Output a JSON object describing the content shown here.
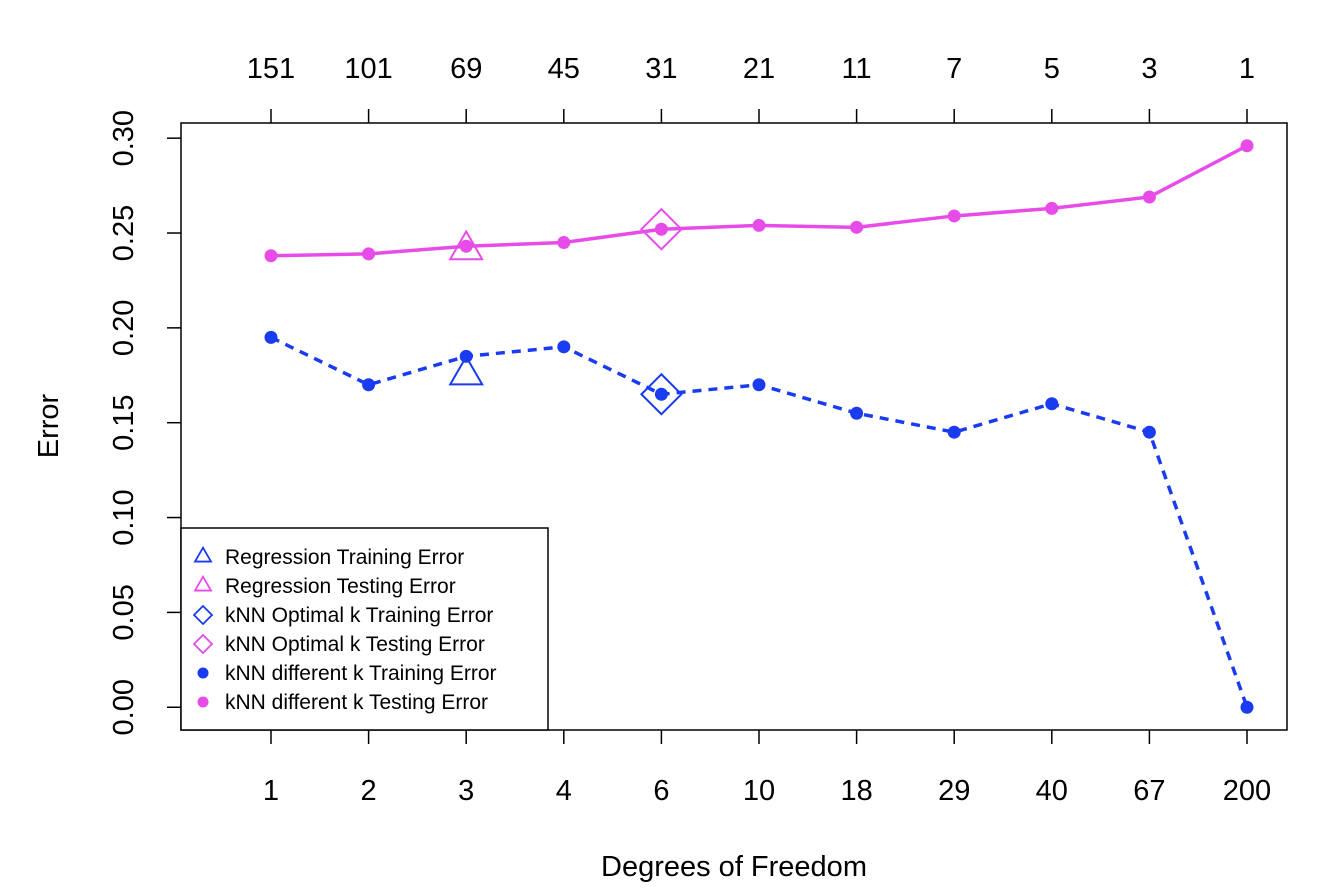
{
  "chart_data": {
    "type": "line",
    "xlabel": "Degrees of Freedom",
    "ylabel": "Error",
    "x_ticks_bottom": [
      "1",
      "2",
      "3",
      "4",
      "6",
      "10",
      "18",
      "29",
      "40",
      "67",
      "200"
    ],
    "x_ticks_top": [
      "151",
      "101",
      "69",
      "45",
      "31",
      "21",
      "11",
      "7",
      "5",
      "3",
      "1"
    ],
    "y_ticks": [
      "0.00",
      "0.05",
      "0.10",
      "0.15",
      "0.20",
      "0.25",
      "0.30"
    ],
    "ylim": [
      -0.012,
      0.308
    ],
    "series": [
      {
        "name": "kNN different k Training Error",
        "color": "#1a3cf0",
        "line_style": "dashed",
        "values": [
          0.195,
          0.17,
          0.185,
          0.19,
          0.165,
          0.17,
          0.155,
          0.145,
          0.16,
          0.145,
          0.0
        ]
      },
      {
        "name": "kNN different k Testing Error",
        "color": "#e84ce8",
        "line_style": "solid",
        "values": [
          0.238,
          0.239,
          0.243,
          0.245,
          0.252,
          0.254,
          0.253,
          0.259,
          0.263,
          0.269,
          0.296
        ]
      }
    ],
    "markers": [
      {
        "name": "Regression Training Error",
        "shape": "triangle",
        "color": "#1a3cf0",
        "x_index": 2,
        "value": 0.175
      },
      {
        "name": "Regression Testing Error",
        "shape": "triangle",
        "color": "#e84ce8",
        "x_index": 2,
        "value": 0.241
      },
      {
        "name": "kNN Optimal k Training Error",
        "shape": "diamond",
        "color": "#1a3cf0",
        "x_index": 4,
        "value": 0.165
      },
      {
        "name": "kNN Optimal k Testing Error",
        "shape": "diamond",
        "color": "#e84ce8",
        "x_index": 4,
        "value": 0.252
      }
    ],
    "legend": {
      "position": "bottom-left",
      "entries": [
        {
          "label": "Regression Training Error",
          "symbol": "triangle",
          "color": "#1a3cf0"
        },
        {
          "label": "Regression Testing Error",
          "symbol": "triangle",
          "color": "#e84ce8"
        },
        {
          "label": "kNN Optimal k Training Error",
          "symbol": "diamond",
          "color": "#1a3cf0"
        },
        {
          "label": "kNN Optimal k Testing Error",
          "symbol": "diamond",
          "color": "#e84ce8"
        },
        {
          "label": "kNN different k Training Error",
          "symbol": "dot",
          "color": "#1a3cf0"
        },
        {
          "label": "kNN different k Testing Error",
          "symbol": "dot",
          "color": "#e84ce8"
        }
      ]
    },
    "grid": false
  }
}
